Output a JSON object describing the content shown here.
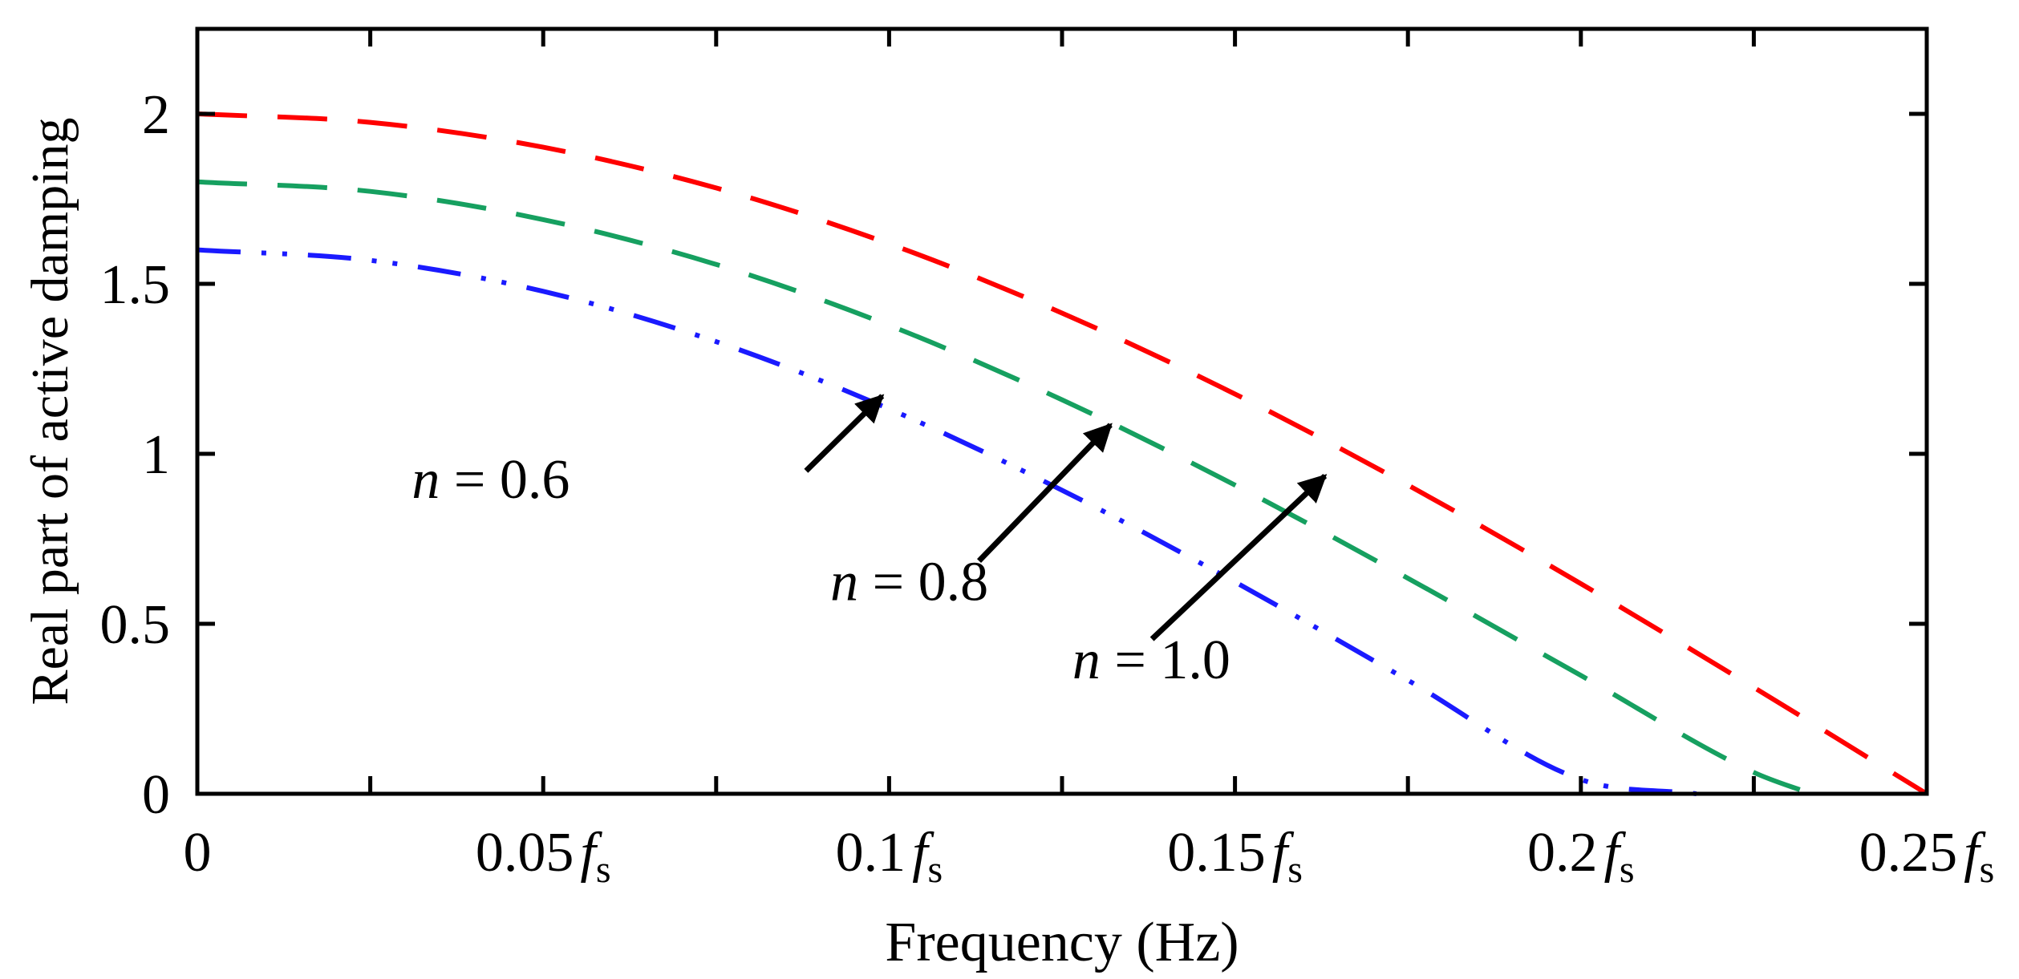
{
  "chart_data": {
    "type": "line",
    "title": "",
    "xlabel": "Frequency  (Hz)",
    "ylabel": "Real part of active damping",
    "xlim": [
      0,
      0.25
    ],
    "ylim": [
      0,
      2.25
    ],
    "x_ticks": [
      {
        "value": 0,
        "coef": "0",
        "sub": ""
      },
      {
        "value": 0.05,
        "coef": "0.05",
        "sub": "s"
      },
      {
        "value": 0.1,
        "coef": "0.1",
        "sub": "s"
      },
      {
        "value": 0.15,
        "coef": "0.15",
        "sub": "s"
      },
      {
        "value": 0.2,
        "coef": "0.2",
        "sub": "s"
      },
      {
        "value": 0.25,
        "coef": "0.25",
        "sub": "s"
      }
    ],
    "x_unit_symbol": "f",
    "x_minor_ticks": [
      0.025,
      0.075,
      0.125,
      0.175,
      0.225
    ],
    "y_ticks": [
      {
        "value": 0,
        "label": "0"
      },
      {
        "value": 0.5,
        "label": "0.5"
      },
      {
        "value": 1,
        "label": "1"
      },
      {
        "value": 1.5,
        "label": "1.5"
      },
      {
        "value": 2,
        "label": "2"
      }
    ],
    "series": [
      {
        "name": "n = 1.0",
        "n": 1.0,
        "color": "#ff0000",
        "style": "dash",
        "x": [
          0,
          0.025,
          0.05,
          0.075,
          0.1,
          0.125,
          0.15,
          0.175,
          0.2,
          0.225,
          0.25
        ],
        "y": [
          2.0,
          1.975,
          1.902,
          1.782,
          1.618,
          1.414,
          1.176,
          0.908,
          0.618,
          0.313,
          0.0
        ]
      },
      {
        "name": "n = 0.8",
        "n": 0.8,
        "color": "#16a060",
        "style": "dash",
        "x": [
          0,
          0.025,
          0.05,
          0.075,
          0.1,
          0.125,
          0.15,
          0.175,
          0.2,
          0.225,
          0.2333
        ],
        "y": [
          1.8,
          1.772,
          1.689,
          1.557,
          1.378,
          1.159,
          0.908,
          0.634,
          0.348,
          0.063,
          0.0
        ]
      },
      {
        "name": "n = 0.6",
        "n": 0.6,
        "color": "#1a1aff",
        "style": "dashdotdot",
        "x": [
          0,
          0.025,
          0.05,
          0.075,
          0.1,
          0.125,
          0.15,
          0.175,
          0.2,
          0.2167
        ],
        "y": [
          1.6,
          1.569,
          1.478,
          1.33,
          1.132,
          0.893,
          0.623,
          0.334,
          0.042,
          0.0
        ]
      }
    ],
    "annotations": [
      {
        "series": "n = 0.6",
        "italic": "n",
        "rest": " = 0.6",
        "text_at": [
          0.031,
          0.87
        ],
        "tail": [
          0.088,
          0.95
        ],
        "head": [
          0.099,
          1.17
        ]
      },
      {
        "series": "n = 0.8",
        "italic": "n",
        "rest": " = 0.8",
        "text_at": [
          0.0915,
          0.57
        ],
        "tail": [
          0.113,
          0.685
        ],
        "head": [
          0.132,
          1.085
        ]
      },
      {
        "series": "n = 1.0",
        "italic": "n",
        "rest": " = 1.0",
        "text_at": [
          0.1265,
          0.34
        ],
        "tail": [
          0.138,
          0.455
        ],
        "head": [
          0.163,
          0.935
        ]
      }
    ]
  }
}
